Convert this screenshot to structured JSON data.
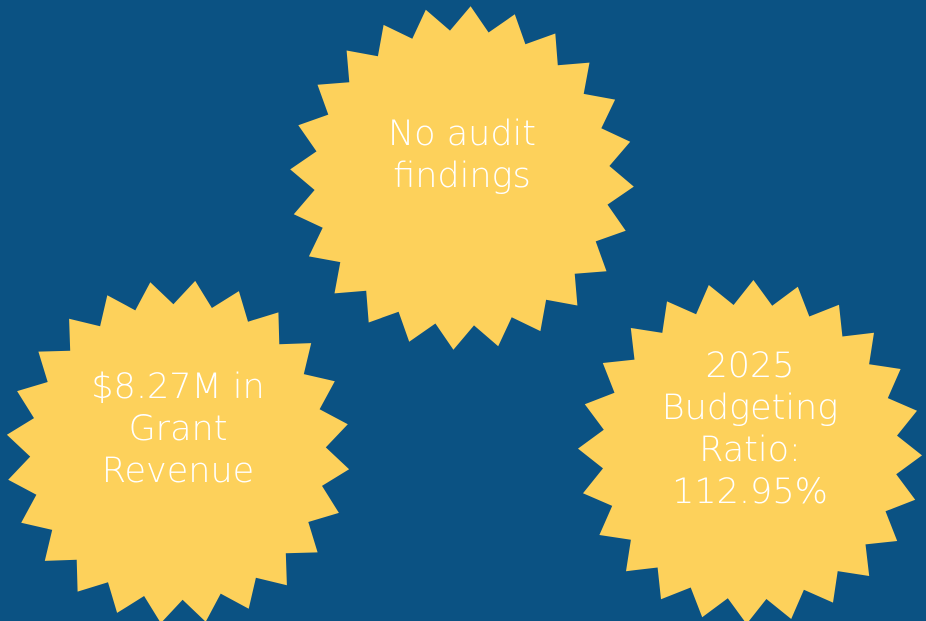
{
  "badges": [
    {
      "lines": [
        "No audit",
        "findings"
      ]
    },
    {
      "lines": [
        "$8.27M in",
        "Grant",
        "Revenue"
      ]
    },
    {
      "lines": [
        "2025",
        "Budgeting",
        "Ratio:",
        "112.95%"
      ]
    }
  ]
}
